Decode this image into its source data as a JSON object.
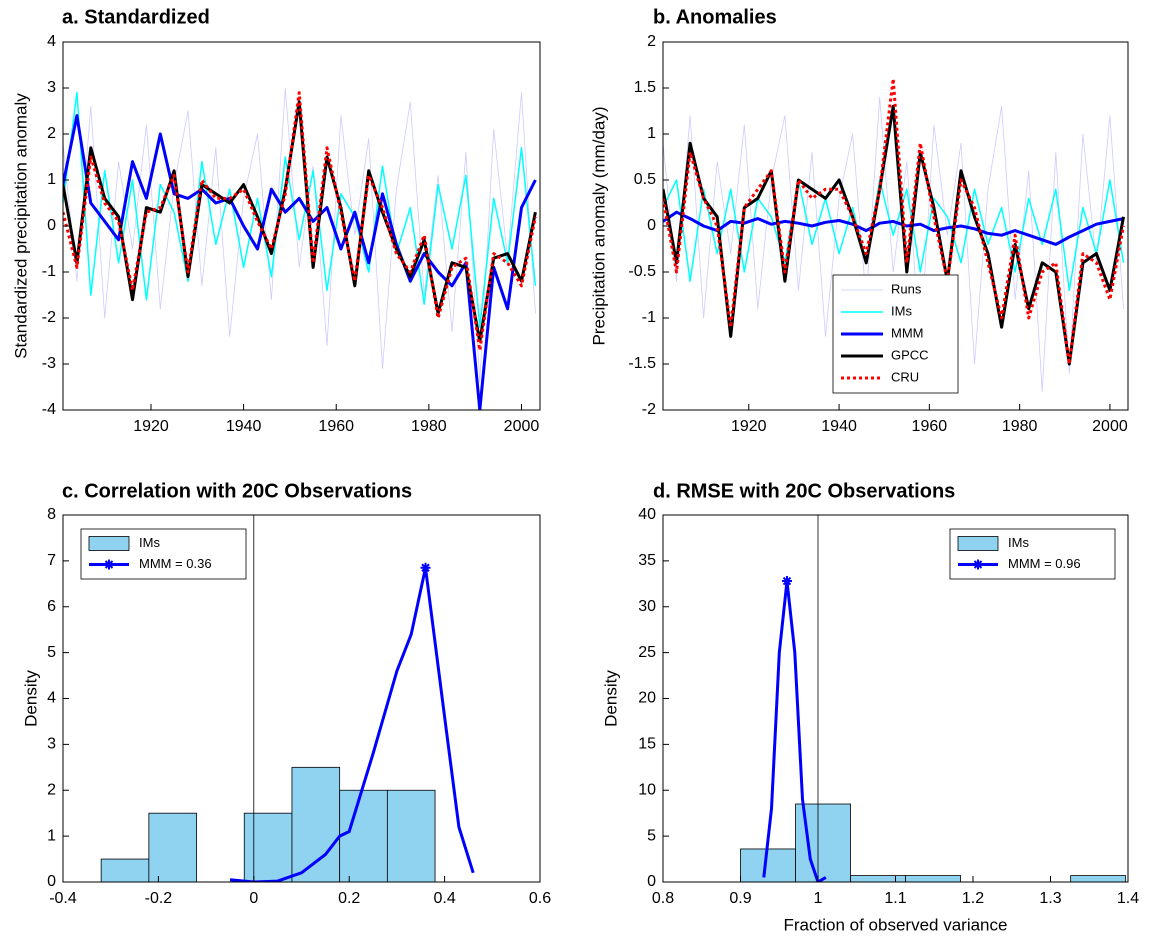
{
  "chart_data": [
    {
      "type": "line",
      "title": "a. Standardized",
      "ylabel": "Standardized precipitation anomaly",
      "x": [
        1901,
        1904,
        1907,
        1910,
        1913,
        1916,
        1919,
        1922,
        1925,
        1928,
        1931,
        1934,
        1937,
        1940,
        1943,
        1946,
        1949,
        1952,
        1955,
        1958,
        1961,
        1964,
        1967,
        1970,
        1973,
        1976,
        1979,
        1982,
        1985,
        1988,
        1991,
        1994,
        1997,
        2000,
        2003
      ],
      "xlim": [
        1901,
        2004
      ],
      "xticks": [
        1920,
        1940,
        1960,
        1980,
        2000
      ],
      "ylim": [
        -4,
        4
      ],
      "yticks": [
        -4,
        -3,
        -2,
        -1,
        0,
        1,
        2,
        3,
        4
      ],
      "series": [
        {
          "color": "#ccccff",
          "width": 0.8,
          "values": [
            1.8,
            -1.2,
            2.6,
            -2.0,
            1.4,
            -0.5,
            2.2,
            -1.8,
            0.9,
            2.5,
            -1.3,
            1.7,
            -2.4,
            0.6,
            2.0,
            -1.6,
            3.0,
            -0.9,
            1.3,
            -2.6,
            2.4,
            -0.2,
            1.9,
            -3.1,
            0.8,
            2.7,
            -1.5,
            1.1,
            -2.3,
            1.6,
            -3.4,
            2.1,
            -0.7,
            2.9,
            -1.9
          ]
        },
        {
          "color": "#00ffff",
          "width": 1.5,
          "values": [
            0.5,
            2.9,
            -1.5,
            1.2,
            -0.8,
            1.0,
            -1.6,
            0.9,
            0.3,
            -1.2,
            1.4,
            -0.4,
            0.8,
            -0.9,
            0.6,
            -1.1,
            1.5,
            -0.3,
            1.2,
            -1.4,
            0.7,
            0.2,
            -1.0,
            1.3,
            -0.6,
            0.4,
            -1.7,
            0.9,
            -0.5,
            1.1,
            -2.2,
            0.6,
            -0.8,
            1.7,
            -1.3
          ]
        },
        {
          "color": "#0000ff",
          "width": 3,
          "values": [
            0.9,
            2.4,
            0.5,
            0.1,
            -0.3,
            1.4,
            0.6,
            2.0,
            0.7,
            0.6,
            0.8,
            0.5,
            0.6,
            0.0,
            -0.5,
            0.8,
            0.3,
            0.6,
            0.1,
            0.4,
            -0.5,
            0.3,
            -0.8,
            0.7,
            -0.4,
            -1.2,
            -0.6,
            -1.0,
            -1.3,
            -0.8,
            -4.0,
            -0.9,
            -1.8,
            0.4,
            1.0
          ]
        },
        {
          "color": "#000000",
          "width": 3,
          "values": [
            0.9,
            -0.8,
            1.7,
            0.6,
            0.2,
            -1.6,
            0.4,
            0.3,
            1.2,
            -1.1,
            0.9,
            0.7,
            0.5,
            0.9,
            0.2,
            -0.6,
            0.8,
            2.7,
            -0.9,
            1.5,
            0.4,
            -1.3,
            1.2,
            0.3,
            -0.5,
            -1.1,
            -0.3,
            -1.9,
            -0.8,
            -0.9,
            -2.5,
            -0.7,
            -0.6,
            -1.2,
            0.3
          ]
        },
        {
          "color": "#ff0000",
          "width": 3,
          "dash": true,
          "values": [
            0.3,
            -0.9,
            1.5,
            0.5,
            0.1,
            -1.4,
            0.3,
            0.4,
            1.1,
            -1.0,
            1.0,
            0.6,
            0.6,
            0.8,
            0.1,
            -0.5,
            0.7,
            2.9,
            -0.8,
            1.7,
            0.3,
            -1.2,
            1.1,
            0.4,
            -0.6,
            -1.0,
            -0.2,
            -2.0,
            -0.9,
            -0.7,
            -2.7,
            -0.6,
            -0.8,
            -1.3,
            0.2
          ]
        }
      ]
    },
    {
      "type": "line",
      "title": "b. Anomalies",
      "ylabel": "Precipitation anomaly (mm/day)",
      "x": [
        1901,
        1904,
        1907,
        1910,
        1913,
        1916,
        1919,
        1922,
        1925,
        1928,
        1931,
        1934,
        1937,
        1940,
        1943,
        1946,
        1949,
        1952,
        1955,
        1958,
        1961,
        1964,
        1967,
        1970,
        1973,
        1976,
        1979,
        1982,
        1985,
        1988,
        1991,
        1994,
        1997,
        2000,
        2003
      ],
      "xlim": [
        1901,
        2004
      ],
      "xticks": [
        1920,
        1940,
        1960,
        1980,
        2000
      ],
      "ylim": [
        -2,
        2
      ],
      "yticks": [
        -2,
        -1.5,
        -1,
        -0.5,
        0,
        0.5,
        1,
        1.5,
        2
      ],
      "legend": "lower center",
      "series": [
        {
          "name": "Runs",
          "color": "#ccccff",
          "width": 0.8,
          "values": [
            0.9,
            -0.6,
            1.2,
            -1.0,
            0.7,
            -0.3,
            1.1,
            -0.9,
            0.5,
            1.2,
            -0.7,
            0.8,
            -1.2,
            0.3,
            1.0,
            -0.8,
            1.4,
            -0.5,
            0.7,
            -1.3,
            1.1,
            -0.1,
            0.9,
            -1.5,
            0.4,
            1.3,
            -0.8,
            0.6,
            -1.8,
            0.8,
            -1.6,
            1.0,
            -0.4,
            1.2,
            -0.9
          ]
        },
        {
          "name": "IMs",
          "color": "#00ffff",
          "width": 1.5,
          "values": [
            0.2,
            0.5,
            -0.6,
            0.4,
            -0.3,
            0.4,
            -0.5,
            0.3,
            0.1,
            -0.4,
            0.5,
            -0.2,
            0.3,
            -0.3,
            0.2,
            -0.4,
            0.5,
            -0.1,
            0.4,
            -0.5,
            0.3,
            0.1,
            -0.4,
            0.4,
            -0.2,
            0.2,
            -0.5,
            0.3,
            -0.2,
            0.4,
            -0.7,
            0.2,
            -0.3,
            0.5,
            -0.4
          ]
        },
        {
          "name": "MMM",
          "color": "#0000ff",
          "width": 3,
          "values": [
            0.05,
            0.15,
            0.08,
            0.0,
            -0.05,
            0.05,
            0.03,
            0.08,
            0.02,
            0.05,
            0.03,
            0.0,
            0.04,
            0.06,
            0.02,
            -0.05,
            0.03,
            0.05,
            0.0,
            0.02,
            -0.05,
            -0.02,
            0.0,
            -0.03,
            -0.08,
            -0.1,
            -0.05,
            -0.1,
            -0.15,
            -0.2,
            -0.12,
            -0.05,
            0.02,
            0.05,
            0.08
          ]
        },
        {
          "name": "GPCC",
          "color": "#000000",
          "width": 3,
          "values": [
            0.4,
            -0.4,
            0.9,
            0.3,
            0.1,
            -1.2,
            0.2,
            0.3,
            0.6,
            -0.6,
            0.5,
            0.4,
            0.3,
            0.5,
            0.1,
            -0.4,
            0.4,
            1.3,
            -0.5,
            0.8,
            0.2,
            -0.6,
            0.6,
            0.1,
            -0.3,
            -1.1,
            -0.2,
            -0.9,
            -0.4,
            -0.5,
            -1.5,
            -0.4,
            -0.3,
            -0.7,
            0.1
          ]
        },
        {
          "name": "CRU",
          "color": "#ff0000",
          "width": 3,
          "dash": true,
          "values": [
            0.3,
            -0.5,
            0.8,
            0.3,
            0.0,
            -1.1,
            0.2,
            0.4,
            0.6,
            -0.5,
            0.5,
            0.3,
            0.4,
            0.4,
            0.1,
            -0.3,
            0.4,
            1.6,
            -0.4,
            0.9,
            0.1,
            -0.6,
            0.5,
            0.2,
            -0.4,
            -1.0,
            -0.1,
            -1.0,
            -0.5,
            -0.4,
            -1.5,
            -0.3,
            -0.4,
            -0.8,
            0.0
          ]
        }
      ]
    },
    {
      "type": "histogram",
      "title": "c. Correlation with 20C Observations",
      "ylabel": "Density",
      "name": "IMs",
      "color": "#8fd3f0",
      "bins": [
        -0.32,
        -0.22,
        -0.12,
        -0.02,
        0.08,
        0.18,
        0.28,
        0.38
      ],
      "values": [
        0.5,
        1.5,
        0,
        1.5,
        2.5,
        2,
        2
      ],
      "vline": 0,
      "kde": {
        "name": "MMM = 0.36",
        "color": "#0000ff",
        "x": [
          -0.05,
          0,
          0.05,
          0.1,
          0.15,
          0.18,
          0.2,
          0.25,
          0.3,
          0.33,
          0.36,
          0.4,
          0.43,
          0.46
        ],
        "values": [
          0.05,
          0,
          0.02,
          0.2,
          0.6,
          1.0,
          1.1,
          2.8,
          4.6,
          5.4,
          6.85,
          3.6,
          1.2,
          0.2
        ],
        "marker": {
          "x": 0.36,
          "y": 6.85
        }
      },
      "xlim": [
        -0.4,
        0.6
      ],
      "xticks": [
        -0.4,
        -0.2,
        0,
        0.2,
        0.4,
        0.6
      ],
      "ylim": [
        0,
        8
      ],
      "yticks": [
        0,
        1,
        2,
        3,
        4,
        5,
        6,
        7,
        8
      ],
      "legend": "upper left"
    },
    {
      "type": "histogram",
      "title": "d. RMSE with 20C Observations",
      "ylabel": "Density",
      "xlabel": "Fraction of observed variance",
      "name": "IMs",
      "color": "#8fd3f0",
      "bins": [
        0.9,
        0.971,
        1.042,
        1.113,
        1.184,
        1.255,
        1.326,
        1.397
      ],
      "values": [
        3.6,
        8.5,
        0.7,
        0.7,
        0,
        0,
        0.7
      ],
      "vline": 1,
      "kde": {
        "name": "MMM = 0.96",
        "color": "#0000ff",
        "x": [
          0.93,
          0.94,
          0.95,
          0.96,
          0.97,
          0.98,
          0.99,
          1.0,
          1.01
        ],
        "values": [
          0.5,
          8,
          25,
          32.8,
          25,
          9,
          2.5,
          0,
          0.5
        ],
        "marker": {
          "x": 0.96,
          "y": 32.8
        }
      },
      "xlim": [
        0.8,
        1.4
      ],
      "xticks": [
        0.8,
        0.9,
        1,
        1.1,
        1.2,
        1.3,
        1.4
      ],
      "ylim": [
        0,
        40
      ],
      "yticks": [
        0,
        5,
        10,
        15,
        20,
        25,
        30,
        35,
        40
      ],
      "legend": "upper right"
    }
  ]
}
